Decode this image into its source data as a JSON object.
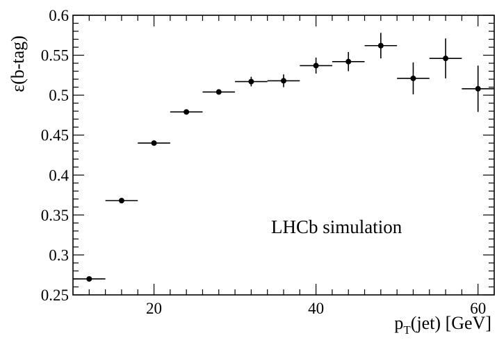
{
  "chart_data": {
    "type": "scatter",
    "title": "",
    "xlabel": "p_T(jet) [GeV]",
    "xlabel_main": "p",
    "xlabel_sub": "T",
    "xlabel_rest": "(jet) [GeV]",
    "ylabel": "ε(b-tag)",
    "xlim": [
      10,
      62
    ],
    "ylim": [
      0.25,
      0.6
    ],
    "x_ticks": [
      20,
      40,
      60
    ],
    "y_ticks": [
      0.25,
      0.3,
      0.35,
      0.4,
      0.45,
      0.5,
      0.55,
      0.6
    ],
    "y_tick_labels": [
      "0.25",
      "0.3",
      "0.35",
      "0.4",
      "0.45",
      "0.5",
      "0.55",
      "0.6"
    ],
    "x_tick_labels": [
      "20",
      "40",
      "60"
    ],
    "grid": false,
    "annotation": "LHCb simulation",
    "series": [
      {
        "points": [
          {
            "x": 12,
            "y": 0.27,
            "xerr": 2,
            "yerr": 0.002
          },
          {
            "x": 16,
            "y": 0.368,
            "xerr": 2,
            "yerr": 0.002
          },
          {
            "x": 20,
            "y": 0.44,
            "xerr": 2,
            "yerr": 0.002
          },
          {
            "x": 24,
            "y": 0.479,
            "xerr": 2,
            "yerr": 0.003
          },
          {
            "x": 28,
            "y": 0.504,
            "xerr": 2,
            "yerr": 0.003
          },
          {
            "x": 32,
            "y": 0.517,
            "xerr": 2,
            "yerr": 0.006
          },
          {
            "x": 36,
            "y": 0.518,
            "xerr": 2,
            "yerr": 0.008
          },
          {
            "x": 40,
            "y": 0.537,
            "xerr": 2,
            "yerr": 0.01
          },
          {
            "x": 44,
            "y": 0.542,
            "xerr": 2,
            "yerr": 0.012
          },
          {
            "x": 48,
            "y": 0.562,
            "xerr": 2,
            "yerr": 0.016
          },
          {
            "x": 52,
            "y": 0.521,
            "xerr": 2,
            "yerr": 0.02
          },
          {
            "x": 56,
            "y": 0.546,
            "xerr": 2,
            "yerr": 0.025
          },
          {
            "x": 60,
            "y": 0.508,
            "xerr": 2,
            "yerr": 0.029
          }
        ]
      }
    ]
  }
}
